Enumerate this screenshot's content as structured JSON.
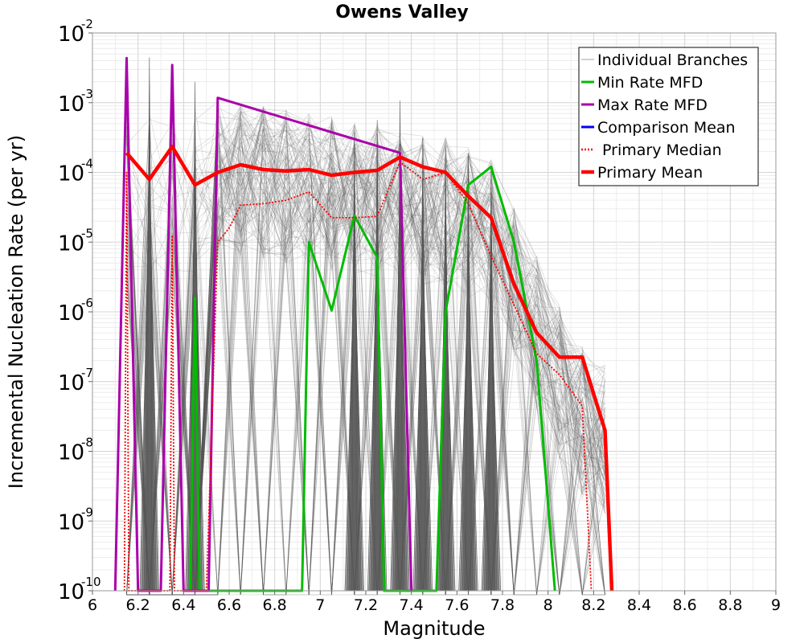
{
  "chart_data": {
    "type": "line",
    "title": "Owens Valley",
    "xlabel": "Magnitude",
    "ylabel": "Incremental Nucleation Rate (per yr)",
    "xlim": [
      6,
      9
    ],
    "ylim": [
      1e-10,
      0.01
    ],
    "yscale": "log",
    "xticks": [
      "6",
      "6.2",
      "6.4",
      "6.6",
      "6.8",
      "7",
      "7.2",
      "7.4",
      "7.6",
      "7.8",
      "8",
      "8.2",
      "8.4",
      "8.6",
      "8.8",
      "9"
    ],
    "yticks": [
      {
        "base": "10",
        "exp": "-10",
        "value": -10
      },
      {
        "base": "10",
        "exp": "-9",
        "value": -9
      },
      {
        "base": "10",
        "exp": "-8",
        "value": -8
      },
      {
        "base": "10",
        "exp": "-7",
        "value": -7
      },
      {
        "base": "10",
        "exp": "-6",
        "value": -6
      },
      {
        "base": "10",
        "exp": "-5",
        "value": -5
      },
      {
        "base": "10",
        "exp": "-4",
        "value": -4
      },
      {
        "base": "10",
        "exp": "-3",
        "value": -3
      },
      {
        "base": "10",
        "exp": "-2",
        "value": -2
      }
    ],
    "grid": true,
    "legend_position": "top-right",
    "legend": [
      {
        "label": "Individual Branches",
        "color": "#b0b0b0",
        "style": "thin"
      },
      {
        "label": "Min Rate MFD",
        "color": "#00bb00",
        "style": "solid"
      },
      {
        "label": "Max Rate MFD",
        "color": "#aa00aa",
        "style": "solid"
      },
      {
        "label": "Comparison Mean",
        "color": "#0000ff",
        "style": "solid"
      },
      {
        "label": " Primary Median",
        "color": "#ff0000",
        "style": "dotted"
      },
      {
        "label": "Primary Mean",
        "color": "#ff0000",
        "style": "thick"
      }
    ],
    "series": [
      {
        "name": "Primary Mean",
        "color": "#ff0000",
        "x": [
          6.15,
          6.25,
          6.35,
          6.45,
          6.55,
          6.65,
          6.75,
          6.85,
          6.95,
          7.05,
          7.15,
          7.25,
          7.35,
          7.45,
          7.55,
          7.65,
          7.75,
          7.85,
          7.95,
          8.05,
          8.15,
          8.25,
          8.28
        ],
        "log10_y": [
          -3.72,
          -4.1,
          -3.63,
          -4.18,
          -4.0,
          -3.89,
          -3.96,
          -3.98,
          -3.96,
          -4.04,
          -4.0,
          -3.97,
          -3.78,
          -3.92,
          -4.0,
          -4.34,
          -4.65,
          -5.6,
          -6.3,
          -6.65,
          -6.65,
          -7.7,
          -10
        ]
      },
      {
        "name": "Primary Median",
        "color": "#ff0000",
        "x": [
          6.14,
          6.15,
          6.16,
          6.34,
          6.35,
          6.36,
          6.5,
          6.55,
          6.6,
          6.65,
          6.75,
          6.85,
          6.95,
          7.05,
          7.15,
          7.25,
          7.35,
          7.45,
          7.55,
          7.65,
          7.75,
          7.85,
          7.95,
          8.05,
          8.15,
          8.19
        ],
        "log10_y": [
          -10,
          -4.0,
          -10,
          -10,
          -4.9,
          -10,
          -10,
          -5.0,
          -4.8,
          -4.47,
          -4.45,
          -4.4,
          -4.28,
          -4.65,
          -4.65,
          -4.63,
          -3.85,
          -4.1,
          -4.0,
          -4.45,
          -5.2,
          -5.9,
          -6.6,
          -6.9,
          -7.35,
          -10
        ]
      },
      {
        "name": "Min Rate MFD",
        "color": "#00bb00",
        "x": [
          6.43,
          6.45,
          6.47,
          6.92,
          6.95,
          7.05,
          7.15,
          7.25,
          7.28,
          7.51,
          7.55,
          7.65,
          7.75,
          7.85,
          7.95,
          8.03
        ],
        "log10_y": [
          -10,
          -5.8,
          -10,
          -10,
          -5.0,
          -5.98,
          -4.62,
          -5.22,
          -10,
          -10,
          -6.0,
          -4.18,
          -3.92,
          -5.0,
          -6.7,
          -10
        ]
      },
      {
        "name": "Max Rate MFD",
        "color": "#aa00aa",
        "x": [
          6.1,
          6.15,
          6.2,
          6.3,
          6.35,
          6.4,
          6.51,
          6.55,
          7.35,
          7.4
        ],
        "log10_y": [
          -10,
          -2.36,
          -10,
          -10,
          -2.46,
          -10,
          -10,
          -2.93,
          -3.72,
          -10
        ]
      }
    ],
    "branches": {
      "name": "Individual Branches",
      "color": "#555555",
      "spike_magnitudes": [
        6.25,
        6.45,
        7.15,
        7.25,
        7.35,
        7.45,
        7.55,
        7.65,
        7.75
      ],
      "spike_log10_peaks": [
        -2.35,
        -2.7,
        -3.42,
        -3.25,
        -2.97,
        -3.5,
        -3.63,
        -3.75,
        -3.92
      ],
      "top_envelope_x": [
        6.55,
        6.65,
        6.75,
        6.85,
        6.95,
        7.05,
        7.15,
        7.25,
        7.35,
        7.45,
        7.55,
        7.65,
        7.75,
        7.85,
        7.95,
        8.05,
        8.15,
        8.25
      ],
      "top_envelope_log10": [
        -2.95,
        -3.0,
        -3.05,
        -3.1,
        -3.15,
        -3.2,
        -3.25,
        -3.3,
        -3.35,
        -3.45,
        -3.5,
        -3.6,
        -3.8,
        -4.5,
        -5.2,
        -5.9,
        -6.5,
        -6.7
      ]
    }
  }
}
